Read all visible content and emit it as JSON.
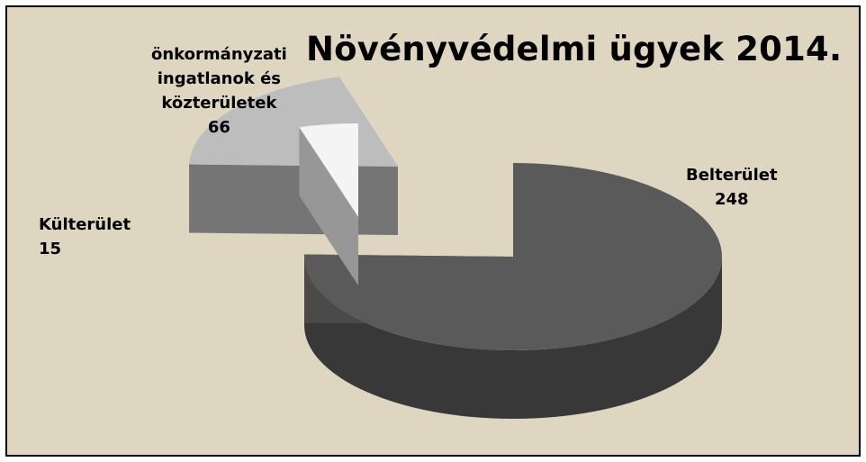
{
  "chart_data": {
    "type": "pie",
    "title": "Növényvédelmi ügyek 2014.",
    "slices": [
      {
        "label": "Belterület",
        "value": 248,
        "color": "#5a5a5a"
      },
      {
        "label": "önkormányzati ingatlanok és közterületek",
        "label_lines": [
          "önkormányzati",
          "ingatlanok és",
          "közterületek"
        ],
        "value": 66,
        "color": "#bdbdbd"
      },
      {
        "label": "Külterület",
        "value": 15,
        "color": "#f4f4f4"
      }
    ],
    "exploded": true,
    "style": "3d",
    "background": "#ded6c1"
  }
}
